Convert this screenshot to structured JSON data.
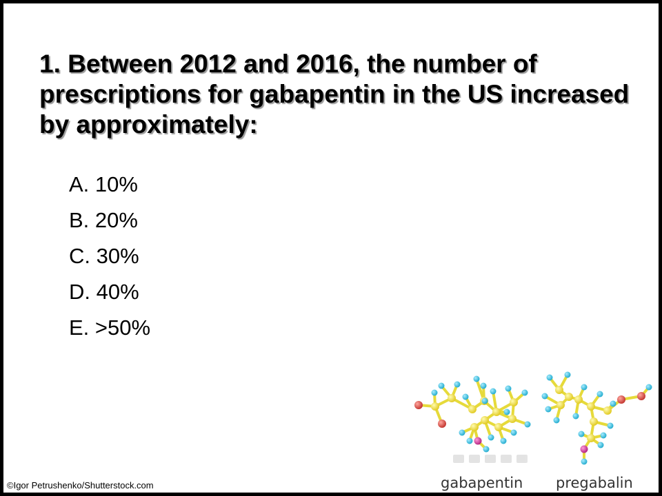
{
  "question": {
    "text": "1. Between 2012 and 2016, the number of prescriptions for gabapentin in the US increased by approximately:"
  },
  "options": [
    "A. 10%",
    "B. 20%",
    "C. 30%",
    "D. 40%",
    "E. >50%"
  ],
  "figure": {
    "label_left": "gabapentin",
    "label_right": "pregabalin"
  },
  "credit": "©Igor Petrushenko/Shutterstock.com",
  "colors": {
    "carbon": "#f0e030",
    "hydrogen": "#35c4e4",
    "oxygen": "#d8443e",
    "nitrogen": "#d33aa0",
    "bond": "#e6da3a"
  }
}
